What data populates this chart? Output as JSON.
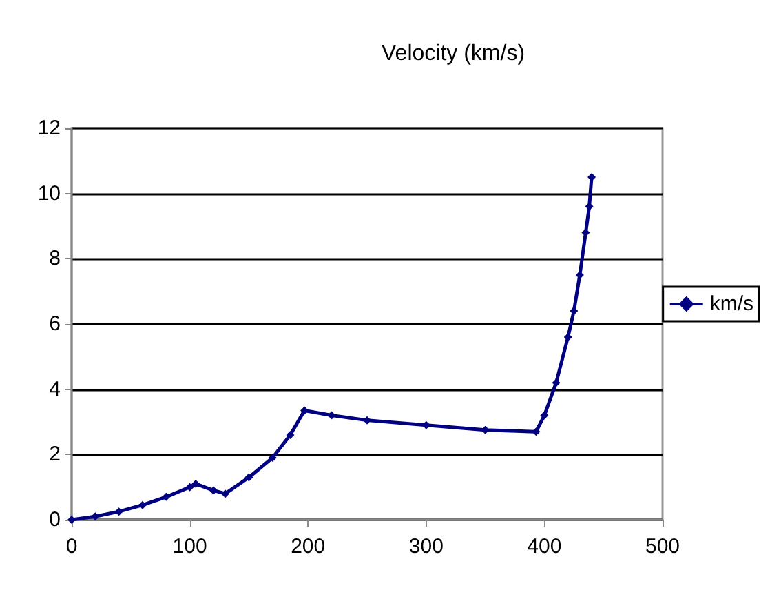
{
  "chart_data": {
    "type": "line",
    "title": "Velocity (km/s)",
    "x": [
      0,
      20,
      40,
      60,
      80,
      100,
      105,
      120,
      130,
      150,
      170,
      185,
      197,
      220,
      250,
      300,
      350,
      393,
      400,
      410,
      420,
      425,
      430,
      435,
      438,
      440
    ],
    "series": [
      {
        "name": "km/s",
        "color": "#000080",
        "values": [
          0,
          0.1,
          0.25,
          0.45,
          0.7,
          1.0,
          1.1,
          0.9,
          0.8,
          1.3,
          1.9,
          2.6,
          3.35,
          3.2,
          3.05,
          2.9,
          2.75,
          2.7,
          3.2,
          4.2,
          5.6,
          6.4,
          7.5,
          8.8,
          9.6,
          10.5
        ]
      }
    ],
    "xlim": [
      0,
      500
    ],
    "xticks": [
      0,
      100,
      200,
      300,
      400,
      500
    ],
    "ylim": [
      0,
      12
    ],
    "yticks": [
      0,
      2,
      4,
      6,
      8,
      10,
      12
    ],
    "grid": "y",
    "legend": "right",
    "marker": "diamond",
    "line_style": "solid"
  }
}
